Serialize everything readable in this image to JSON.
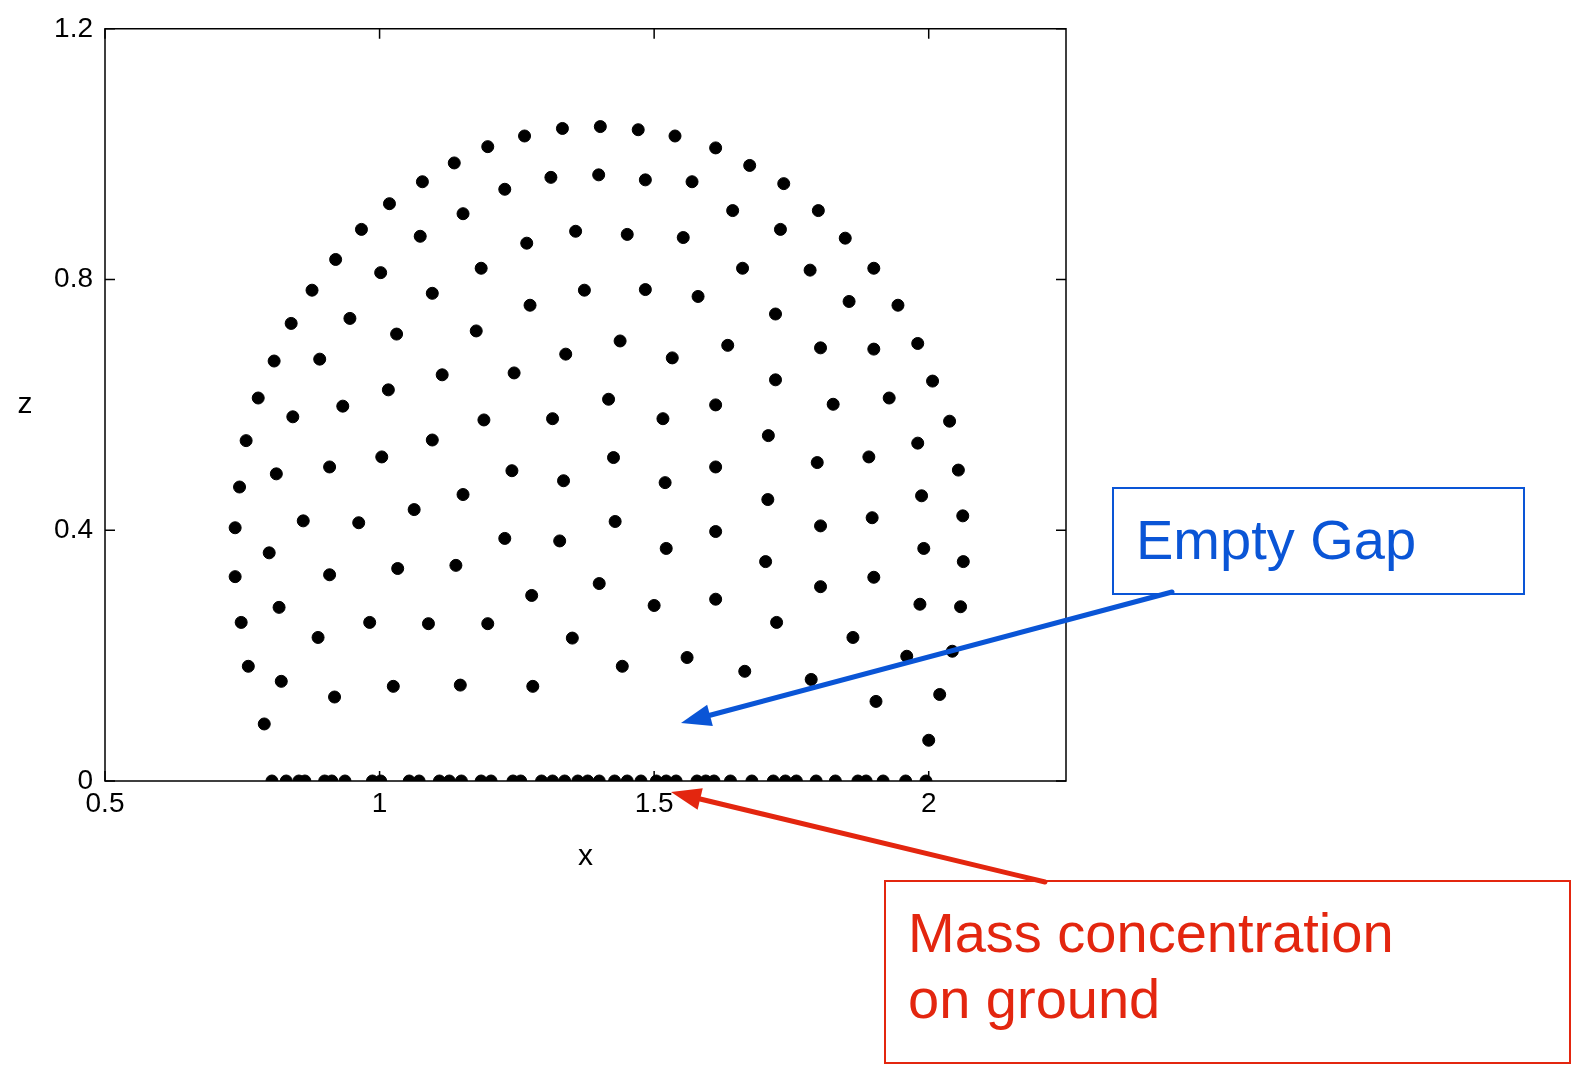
{
  "chart_data": {
    "type": "scatter",
    "xlabel": "x",
    "ylabel": "z",
    "color": "#000000",
    "marker": "circle",
    "grid": false,
    "xlim": [
      0.5,
      2.25
    ],
    "xticks": [
      0.5,
      1,
      1.5,
      2
    ],
    "ylim": [
      0,
      1.2
    ],
    "yticks": [
      0,
      0.4,
      0.8,
      1.2
    ],
    "x": [
      1.402,
      1.471,
      1.538,
      1.612,
      1.674,
      1.736,
      1.799,
      1.848,
      1.9,
      1.944,
      1.98,
      2.007,
      2.038,
      1.333,
      1.264,
      1.197,
      1.136,
      1.078,
      1.018,
      0.967,
      0.92,
      0.877,
      0.839,
      0.808,
      0.779,
      0.757,
      1.399,
      1.484,
      1.569,
      1.643,
      1.73,
      1.451,
      1.553,
      1.661,
      1.784,
      1.373,
      1.484,
      1.58,
      1.721,
      1.855,
      1.438,
      1.533,
      1.634,
      1.803,
      1.9,
      1.721,
      1.417,
      1.516,
      1.612,
      1.826,
      1.928,
      1.708,
      1.98,
      1.312,
      1.228,
      1.152,
      1.074,
      1.002,
      0.946,
      0.891,
      0.842,
      1.357,
      1.268,
      1.185,
      1.096,
      1.031,
      0.933,
      1.274,
      1.176,
      1.114,
      1.016,
      1.339,
      1.245,
      1.19,
      1.315,
      1.096,
      0.812,
      0.909,
      1.004,
      0.745,
      1.241,
      1.335,
      1.152,
      1.063,
      0.737,
      0.861,
      0.962,
      0.799,
      1.228,
      1.328,
      0.737,
      0.909,
      1.033,
      1.139,
      1.4,
      1.277,
      0.817,
      0.748,
      0.982,
      1.089,
      1.197,
      0.888,
      1.351,
      0.761,
      0.821,
      0.918,
      1.025,
      1.147,
      1.279,
      0.79,
      1.426,
      1.612,
      1.52,
      1.797,
      1.891,
      2.054,
      1.707,
      1.987,
      1.429,
      1.612,
      1.803,
      1.897,
      2.062,
      1.522,
      1.703,
      1.991,
      2.063,
      1.5,
      1.612,
      1.803,
      1.9,
      1.984,
      2.058,
      1.723,
      1.862,
      1.442,
      1.56,
      1.665,
      1.786,
      1.96,
      2.043,
      1.904,
      2.02,
      2.0,
      0.804,
      0.83,
      0.853,
      0.864,
      0.9,
      0.913,
      0.937,
      0.987,
      1.002,
      1.054,
      1.072,
      1.109,
      1.127,
      1.149,
      1.185,
      1.203,
      1.243,
      1.257,
      1.295,
      1.315,
      1.337,
      1.361,
      1.379,
      1.4,
      1.428,
      1.451,
      1.476,
      1.504,
      1.522,
      1.54,
      1.578,
      1.594,
      1.609,
      1.639,
      1.678,
      1.717,
      1.739,
      1.759,
      1.795,
      1.83,
      1.871,
      1.886,
      1.917,
      1.958,
      1.995
    ],
    "values": [
      1.044,
      1.039,
      1.029,
      1.01,
      0.982,
      0.953,
      0.91,
      0.866,
      0.818,
      0.759,
      0.698,
      0.638,
      0.574,
      1.041,
      1.029,
      1.012,
      0.986,
      0.956,
      0.921,
      0.88,
      0.832,
      0.783,
      0.73,
      0.67,
      0.611,
      0.543,
      0.967,
      0.959,
      0.956,
      0.91,
      0.88,
      0.872,
      0.867,
      0.818,
      0.815,
      0.783,
      0.784,
      0.773,
      0.745,
      0.765,
      0.702,
      0.675,
      0.695,
      0.691,
      0.689,
      0.64,
      0.609,
      0.578,
      0.6,
      0.601,
      0.611,
      0.551,
      0.539,
      0.963,
      0.944,
      0.905,
      0.869,
      0.811,
      0.738,
      0.673,
      0.581,
      0.877,
      0.858,
      0.818,
      0.778,
      0.713,
      0.598,
      0.759,
      0.718,
      0.648,
      0.624,
      0.681,
      0.651,
      0.576,
      0.578,
      0.544,
      0.49,
      0.501,
      0.517,
      0.469,
      0.495,
      0.479,
      0.457,
      0.433,
      0.404,
      0.415,
      0.412,
      0.364,
      0.387,
      0.383,
      0.326,
      0.329,
      0.339,
      0.344,
      0.315,
      0.296,
      0.277,
      0.253,
      0.253,
      0.251,
      0.251,
      0.229,
      0.228,
      0.183,
      0.159,
      0.134,
      0.151,
      0.153,
      0.151,
      0.091,
      0.516,
      0.501,
      0.476,
      0.508,
      0.517,
      0.496,
      0.449,
      0.455,
      0.414,
      0.398,
      0.407,
      0.42,
      0.423,
      0.371,
      0.35,
      0.371,
      0.35,
      0.28,
      0.29,
      0.31,
      0.325,
      0.282,
      0.278,
      0.253,
      0.229,
      0.183,
      0.197,
      0.175,
      0.162,
      0.199,
      0.207,
      0.127,
      0.138,
      0.065,
      0,
      0,
      0,
      0,
      0,
      0,
      0,
      0,
      0,
      0,
      0,
      0,
      0,
      0,
      0,
      0,
      0,
      0,
      0,
      0,
      0,
      0,
      0,
      0,
      0,
      0,
      0,
      0,
      0,
      0,
      0,
      0,
      0,
      0,
      0,
      0,
      0,
      0,
      0,
      0,
      0,
      0,
      0,
      0,
      0
    ],
    "annotations": [
      "Empty Gap",
      "Mass concentration on ground"
    ]
  }
}
